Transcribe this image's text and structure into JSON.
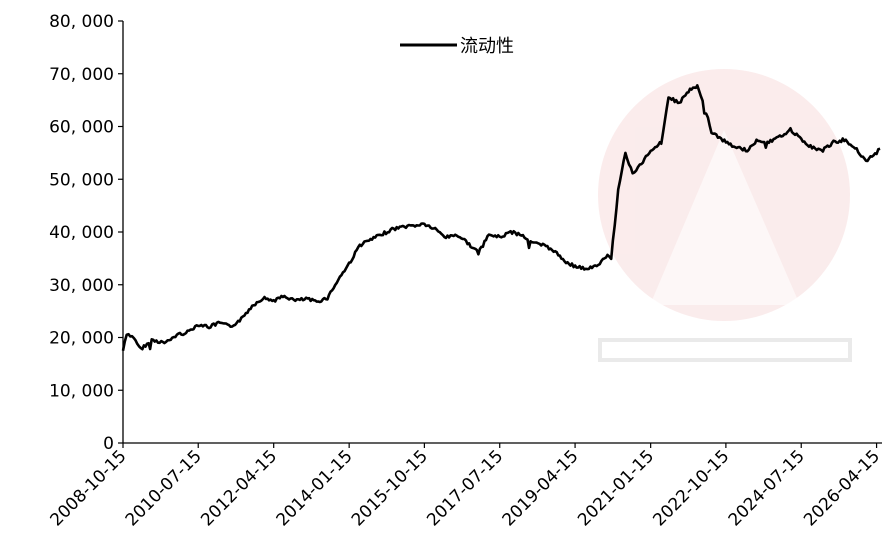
{
  "chart_data": {
    "type": "line",
    "title": "",
    "xlabel": "",
    "ylabel": "",
    "ylim": [
      0,
      80000
    ],
    "y_ticks": [
      "0",
      "10, 000",
      "20, 000",
      "30, 000",
      "40, 000",
      "50, 000",
      "60, 000",
      "70, 000",
      "80, 000"
    ],
    "x_ticks": [
      "2008-10-15",
      "2010-07-15",
      "2012-04-15",
      "2014-01-15",
      "2015-10-15",
      "2017-07-15",
      "2019-04-15",
      "2021-01-15",
      "2022-10-15",
      "2024-07-15",
      "2026-04-15"
    ],
    "grid": false,
    "legend": "top-center",
    "series": [
      {
        "name": "流动性",
        "color": "#000000",
        "points": [
          [
            "2008-10-15",
            17500
          ],
          [
            "2008-11-15",
            20500
          ],
          [
            "2009-01-15",
            20000
          ],
          [
            "2009-03-15",
            17800
          ],
          [
            "2009-06-15",
            19500
          ],
          [
            "2009-10-15",
            19000
          ],
          [
            "2010-01-15",
            20500
          ],
          [
            "2010-04-15",
            21000
          ],
          [
            "2010-07-15",
            22500
          ],
          [
            "2010-10-15",
            22000
          ],
          [
            "2011-01-15",
            22800
          ],
          [
            "2011-04-15",
            22000
          ],
          [
            "2011-07-15",
            23500
          ],
          [
            "2011-10-15",
            26000
          ],
          [
            "2012-01-15",
            27500
          ],
          [
            "2012-04-15",
            27000
          ],
          [
            "2012-07-15",
            27800
          ],
          [
            "2012-10-15",
            27000
          ],
          [
            "2013-01-15",
            27300
          ],
          [
            "2013-04-15",
            26800
          ],
          [
            "2013-07-15",
            27500
          ],
          [
            "2013-10-15",
            31000
          ],
          [
            "2014-01-15",
            34000
          ],
          [
            "2014-04-15",
            37500
          ],
          [
            "2014-07-15",
            38500
          ],
          [
            "2014-10-15",
            39500
          ],
          [
            "2015-01-15",
            40500
          ],
          [
            "2015-04-15",
            41000
          ],
          [
            "2015-07-15",
            41200
          ],
          [
            "2015-10-15",
            41500
          ],
          [
            "2016-01-15",
            40500
          ],
          [
            "2016-04-15",
            39000
          ],
          [
            "2016-07-15",
            39500
          ],
          [
            "2016-10-15",
            38000
          ],
          [
            "2017-01-15",
            36000
          ],
          [
            "2017-04-15",
            39500
          ],
          [
            "2017-07-15",
            39000
          ],
          [
            "2017-10-15",
            40000
          ],
          [
            "2018-01-15",
            39500
          ],
          [
            "2018-04-15",
            38000
          ],
          [
            "2018-07-15",
            37500
          ],
          [
            "2018-10-15",
            36500
          ],
          [
            "2019-01-15",
            34500
          ],
          [
            "2019-04-15",
            33500
          ],
          [
            "2019-07-15",
            33000
          ],
          [
            "2019-10-15",
            33500
          ],
          [
            "2020-01-15",
            35500
          ],
          [
            "2020-02-15",
            35000
          ],
          [
            "2020-04-15",
            48000
          ],
          [
            "2020-06-15",
            55000
          ],
          [
            "2020-08-15",
            51000
          ],
          [
            "2020-10-15",
            52500
          ],
          [
            "2021-01-15",
            55500
          ],
          [
            "2021-04-15",
            57000
          ],
          [
            "2021-06-15",
            65500
          ],
          [
            "2021-09-15",
            64500
          ],
          [
            "2021-12-15",
            67000
          ],
          [
            "2022-02-15",
            67500
          ],
          [
            "2022-04-15",
            64000
          ],
          [
            "2022-06-15",
            59000
          ],
          [
            "2022-10-15",
            57000
          ],
          [
            "2023-01-15",
            56000
          ],
          [
            "2023-04-15",
            55500
          ],
          [
            "2023-07-15",
            57500
          ],
          [
            "2023-10-15",
            57000
          ],
          [
            "2024-01-15",
            58000
          ],
          [
            "2024-04-15",
            59500
          ],
          [
            "2024-07-15",
            57500
          ],
          [
            "2024-10-15",
            56000
          ],
          [
            "2025-01-15",
            55500
          ],
          [
            "2025-04-15",
            57000
          ],
          [
            "2025-07-15",
            57500
          ],
          [
            "2025-10-15",
            56000
          ],
          [
            "2026-01-15",
            53500
          ],
          [
            "2026-04-15",
            55000
          ],
          [
            "2026-05-15",
            55800
          ]
        ]
      }
    ]
  }
}
